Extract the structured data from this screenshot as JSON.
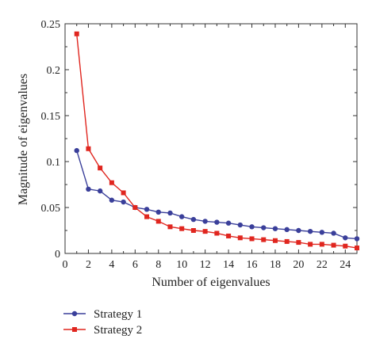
{
  "chart_data": {
    "type": "line",
    "title": "",
    "xlabel": "Number of eigenvalues",
    "ylabel": "Magnitude of eigenvalues",
    "xlim": [
      0,
      25
    ],
    "ylim": [
      0,
      0.25
    ],
    "xticks": [
      0,
      2,
      4,
      6,
      8,
      10,
      12,
      14,
      16,
      18,
      20,
      22,
      24
    ],
    "yticks": [
      0,
      0.05,
      0.1,
      0.15,
      0.2,
      0.25
    ],
    "ytick_labels": [
      "0",
      "0.05",
      "0.1",
      "0.15",
      "0.2",
      "0.25"
    ],
    "grid": false,
    "legend_position": "bottom-left",
    "x": [
      1,
      2,
      3,
      4,
      5,
      6,
      7,
      8,
      9,
      10,
      11,
      12,
      13,
      14,
      15,
      16,
      17,
      18,
      19,
      20,
      21,
      22,
      23,
      24,
      25
    ],
    "series": [
      {
        "name": "Strategy 1",
        "color": "#3a3f9a",
        "marker": "circle",
        "values": [
          0.112,
          0.07,
          0.068,
          0.058,
          0.056,
          0.05,
          0.048,
          0.045,
          0.044,
          0.04,
          0.037,
          0.035,
          0.034,
          0.033,
          0.031,
          0.029,
          0.028,
          0.027,
          0.026,
          0.025,
          0.024,
          0.023,
          0.022,
          0.017,
          0.016
        ]
      },
      {
        "name": "Strategy 2",
        "color": "#e0261f",
        "marker": "square",
        "values": [
          0.239,
          0.114,
          0.093,
          0.077,
          0.066,
          0.05,
          0.04,
          0.035,
          0.029,
          0.027,
          0.025,
          0.024,
          0.022,
          0.019,
          0.017,
          0.016,
          0.015,
          0.014,
          0.013,
          0.012,
          0.01,
          0.01,
          0.009,
          0.008,
          0.006
        ]
      }
    ]
  }
}
